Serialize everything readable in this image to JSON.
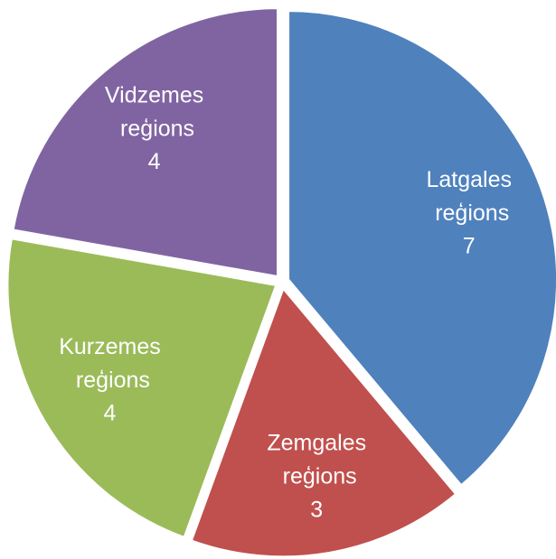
{
  "chart_data": {
    "type": "pie",
    "categories": [
      "Latgales reģions",
      "Zemgales reģions",
      "Kurzemes reģions",
      "Vidzemes reģions"
    ],
    "values": [
      7,
      3,
      4,
      4
    ],
    "colors": [
      "#4f81bd",
      "#c0504d",
      "#9bbb59",
      "#8064a2"
    ]
  }
}
